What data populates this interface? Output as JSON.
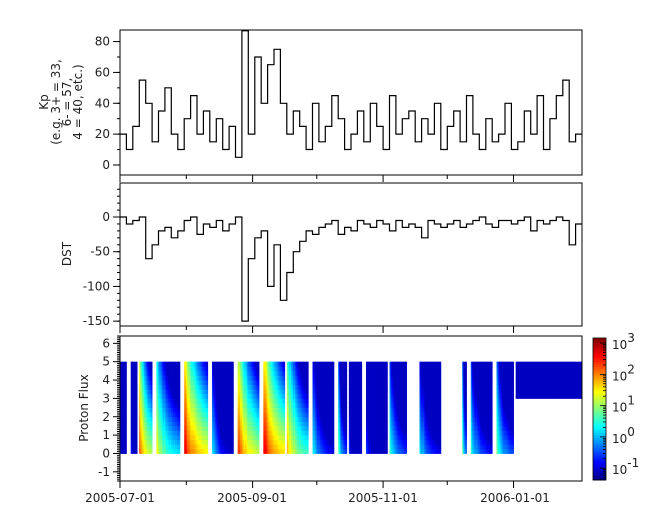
{
  "chart_data": [
    {
      "type": "line",
      "ylabel_lines": [
        "Kp",
        "(e.g. 3+ = 33,",
        "6- = 57,",
        "4 = 40, etc.)"
      ],
      "ylim": [
        -6.5,
        87.5
      ],
      "yticks": [
        0,
        20,
        40,
        60,
        80
      ],
      "xlim": [
        "2005-07-01",
        "2006-02-02"
      ],
      "x": [
        "2005-07-01",
        "2005-07-04",
        "2005-07-07",
        "2005-07-10",
        "2005-07-13",
        "2005-07-16",
        "2005-07-19",
        "2005-07-22",
        "2005-07-25",
        "2005-07-28",
        "2005-07-31",
        "2005-08-03",
        "2005-08-06",
        "2005-08-09",
        "2005-08-12",
        "2005-08-15",
        "2005-08-18",
        "2005-08-21",
        "2005-08-24",
        "2005-08-27",
        "2005-08-30",
        "2005-09-02",
        "2005-09-05",
        "2005-09-08",
        "2005-09-11",
        "2005-09-14",
        "2005-09-17",
        "2005-09-20",
        "2005-09-23",
        "2005-09-26",
        "2005-09-29",
        "2005-10-02",
        "2005-10-05",
        "2005-10-08",
        "2005-10-11",
        "2005-10-14",
        "2005-10-17",
        "2005-10-20",
        "2005-10-23",
        "2005-10-26",
        "2005-10-29",
        "2005-11-01",
        "2005-11-04",
        "2005-11-07",
        "2005-11-10",
        "2005-11-13",
        "2005-11-16",
        "2005-11-19",
        "2005-11-22",
        "2005-11-25",
        "2005-11-28",
        "2005-12-01",
        "2005-12-04",
        "2005-12-07",
        "2005-12-10",
        "2005-12-13",
        "2005-12-16",
        "2005-12-19",
        "2005-12-22",
        "2005-12-25",
        "2005-12-28",
        "2005-12-31",
        "2006-01-03",
        "2006-01-06",
        "2006-01-09",
        "2006-01-12",
        "2006-01-15",
        "2006-01-18",
        "2006-01-21",
        "2006-01-24",
        "2006-01-27",
        "2006-01-30"
      ],
      "values": [
        20,
        10,
        25,
        55,
        40,
        15,
        35,
        50,
        20,
        10,
        30,
        45,
        20,
        35,
        15,
        30,
        10,
        25,
        5,
        87,
        20,
        70,
        40,
        65,
        75,
        40,
        20,
        35,
        25,
        10,
        40,
        15,
        25,
        45,
        30,
        10,
        20,
        35,
        15,
        40,
        25,
        10,
        45,
        20,
        30,
        35,
        15,
        30,
        20,
        40,
        10,
        25,
        35,
        15,
        45,
        20,
        10,
        30,
        15,
        20,
        40,
        10,
        15,
        35,
        20,
        45,
        10,
        30,
        45,
        55,
        15,
        20
      ],
      "color": "#000000"
    },
    {
      "type": "line",
      "ylabel": "DST",
      "ylim": [
        -157,
        49
      ],
      "yticks": [
        0,
        -50,
        -100,
        -150
      ],
      "xlim": [
        "2005-07-01",
        "2006-02-02"
      ],
      "values": [
        0,
        -10,
        -5,
        0,
        -60,
        -40,
        -20,
        -15,
        -30,
        -20,
        -5,
        0,
        -25,
        -10,
        -15,
        -5,
        -20,
        -10,
        0,
        -150,
        -60,
        -30,
        -20,
        -100,
        -40,
        -120,
        -80,
        -50,
        -35,
        -20,
        -25,
        -15,
        -10,
        -5,
        -25,
        -15,
        -20,
        -5,
        -10,
        -15,
        -5,
        -10,
        -20,
        -5,
        -15,
        -10,
        -15,
        -30,
        -5,
        -10,
        -15,
        -10,
        -5,
        -15,
        -10,
        -5,
        0,
        -10,
        -15,
        -5,
        -5,
        -10,
        -5,
        0,
        -20,
        -5,
        -10,
        -5,
        0,
        -5,
        -40,
        -10
      ],
      "color": "#000000"
    },
    {
      "type": "heatmap",
      "ylabel": "Proton Flux",
      "ylim": [
        -1.5,
        6.4
      ],
      "yticks": [
        -1,
        0,
        1,
        2,
        3,
        4,
        5,
        6
      ],
      "xlim": [
        "2005-07-01",
        "2006-02-02"
      ],
      "xticks": [
        "2005-07-01",
        "2005-09-01",
        "2005-11-01",
        "2006-01-01"
      ],
      "colorbar": {
        "scale": "log",
        "range": [
          0.042,
          1450
        ],
        "tick_labels": [
          {
            "base": "10",
            "exp": "3"
          },
          {
            "base": "10",
            "exp": "2"
          },
          {
            "base": "10",
            "exp": "1"
          },
          {
            "base": "10",
            "exp": "0"
          },
          {
            "base": "10",
            "exp": "-1"
          }
        ],
        "colormap": "jet"
      },
      "blocks": [
        {
          "start": "2005-07-01",
          "end": "2005-07-04",
          "y_range": [
            0,
            5
          ],
          "max_log_flux": -0.5
        },
        {
          "start": "2005-07-06",
          "end": "2005-07-09",
          "y_range": [
            0,
            5
          ],
          "max_log_flux": -0.4
        },
        {
          "start": "2005-07-10",
          "end": "2005-07-16",
          "y_range": [
            0,
            5
          ],
          "max_log_flux": 2.5
        },
        {
          "start": "2005-07-18",
          "end": "2005-07-29",
          "y_range": [
            0,
            5
          ],
          "max_log_flux": 1.6
        },
        {
          "start": "2005-07-31",
          "end": "2005-08-11",
          "y_range": [
            0,
            5
          ],
          "max_log_flux": 2.9
        },
        {
          "start": "2005-08-13",
          "end": "2005-08-23",
          "y_range": [
            0,
            5
          ],
          "max_log_flux": 0.3
        },
        {
          "start": "2005-08-25",
          "end": "2005-09-04",
          "y_range": [
            0,
            5
          ],
          "max_log_flux": 2.6
        },
        {
          "start": "2005-09-06",
          "end": "2005-09-16",
          "y_range": [
            0,
            5
          ],
          "max_log_flux": 3.0
        },
        {
          "start": "2005-09-17",
          "end": "2005-09-27",
          "y_range": [
            0,
            5
          ],
          "max_log_flux": 2.0
        },
        {
          "start": "2005-09-29",
          "end": "2005-10-09",
          "y_range": [
            0,
            5
          ],
          "max_log_flux": 0.5
        },
        {
          "start": "2005-10-11",
          "end": "2005-10-15",
          "y_range": [
            0,
            5
          ],
          "max_log_flux": 0.8
        },
        {
          "start": "2005-10-16",
          "end": "2005-10-22",
          "y_range": [
            0,
            5
          ],
          "max_log_flux": -0.5
        },
        {
          "start": "2005-10-24",
          "end": "2005-11-03",
          "y_range": [
            0,
            5
          ],
          "max_log_flux": -0.3
        },
        {
          "start": "2005-11-04",
          "end": "2005-11-12",
          "y_range": [
            0,
            5
          ],
          "max_log_flux": 0.8
        },
        {
          "start": "2005-11-18",
          "end": "2005-11-28",
          "y_range": [
            0,
            5
          ],
          "max_log_flux": 0.5
        },
        {
          "start": "2005-12-08",
          "end": "2005-12-10",
          "y_range": [
            0,
            5
          ],
          "max_log_flux": 1.0
        },
        {
          "start": "2005-12-12",
          "end": "2005-12-22",
          "y_range": [
            0,
            5
          ],
          "max_log_flux": 0.6
        },
        {
          "start": "2005-12-24",
          "end": "2006-01-01",
          "y_range": [
            0,
            5
          ],
          "max_log_flux": 0.9
        },
        {
          "start": "2006-01-02",
          "end": "2006-02-02",
          "y_range": [
            3,
            5
          ],
          "max_log_flux": -0.9
        }
      ]
    }
  ],
  "axis": {
    "xtick_labels": [
      "2005-07-01",
      "2005-09-01",
      "2005-11-01",
      "2006-01-01"
    ]
  }
}
